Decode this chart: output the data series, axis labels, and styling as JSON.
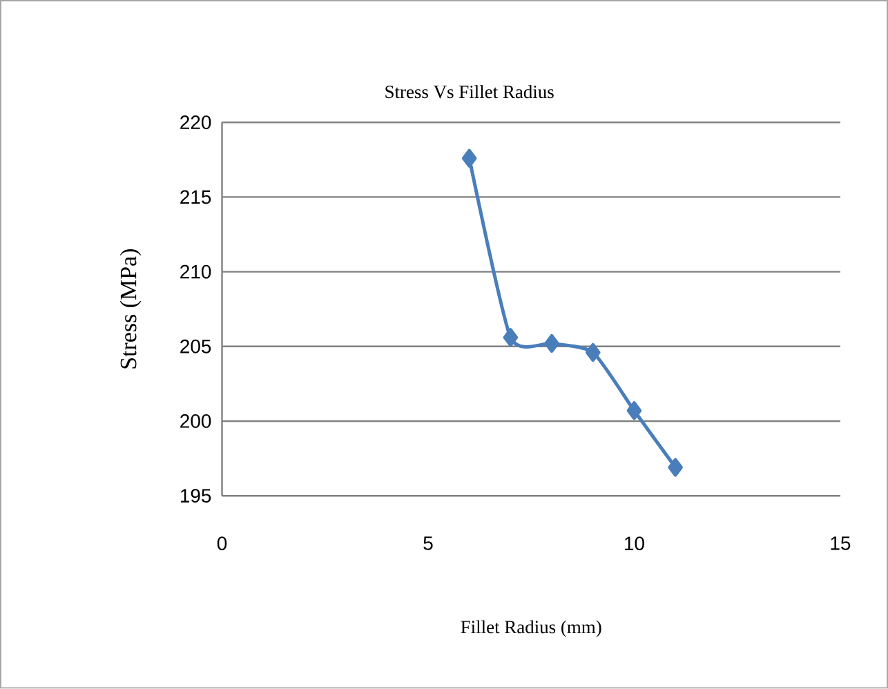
{
  "chart_data": {
    "type": "line",
    "title": "Stress Vs Fillet Radius",
    "xlabel": "Fillet Radius (mm)",
    "ylabel": "Stress (MPa)",
    "x": [
      6,
      7,
      8,
      9,
      10,
      11
    ],
    "series": [
      {
        "color": "#4a7ebb",
        "values": [
          217.6,
          205.6,
          205.2,
          204.6,
          200.7,
          196.9
        ]
      }
    ],
    "xlim": [
      0,
      15
    ],
    "xticks": [
      0,
      5,
      10,
      15
    ],
    "ylim": [
      195,
      220
    ],
    "yticks": [
      195,
      200,
      205,
      210,
      215,
      220
    ],
    "grid": "y",
    "marker": "diamond",
    "line_style": "solid"
  }
}
